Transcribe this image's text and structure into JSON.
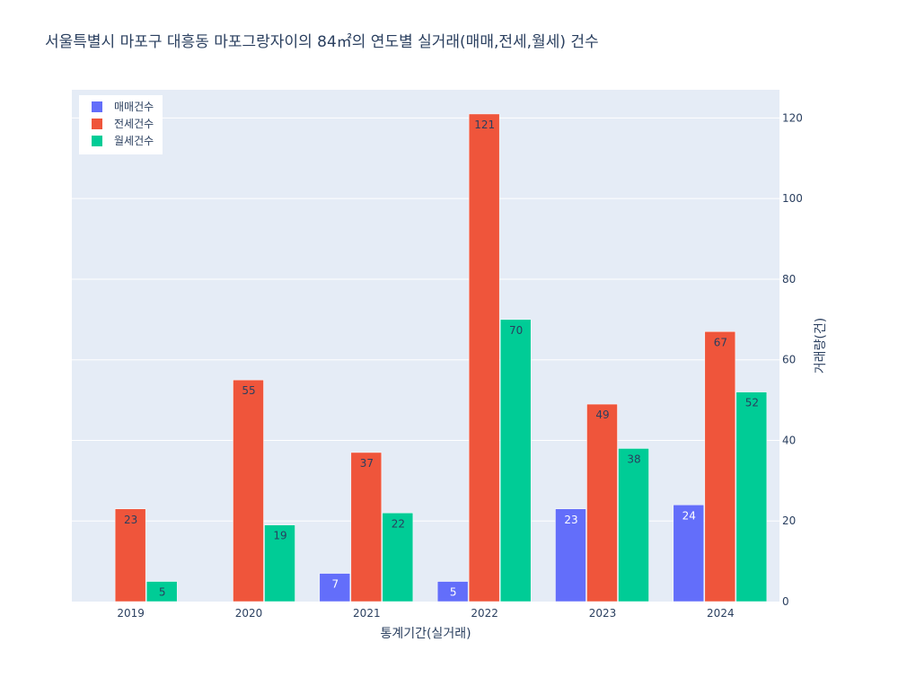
{
  "chart_data": {
    "type": "bar",
    "title": "서울특별시 마포구 대흥동 마포그랑자이의 84㎡의 연도별 실거래(매매,전세,월세) 건수",
    "xlabel": "통계기간(실거래)",
    "ylabel": "거래량(건)",
    "categories": [
      "2019",
      "2020",
      "2021",
      "2022",
      "2023",
      "2024"
    ],
    "series": [
      {
        "name": "매매건수",
        "color": "#636efa",
        "values": [
          null,
          null,
          7,
          5,
          23,
          24
        ]
      },
      {
        "name": "전세건수",
        "color": "#ef553b",
        "values": [
          23,
          55,
          37,
          121,
          49,
          67
        ]
      },
      {
        "name": "월세건수",
        "color": "#00cc96",
        "values": [
          5,
          19,
          22,
          70,
          38,
          52
        ]
      }
    ],
    "ylim": [
      0,
      127
    ],
    "yticks": [
      0,
      20,
      40,
      60,
      80,
      100,
      120
    ],
    "y_axis_side": "right",
    "grid": true,
    "legend_position": "top-left",
    "plot_background": "#e5ecf6"
  }
}
